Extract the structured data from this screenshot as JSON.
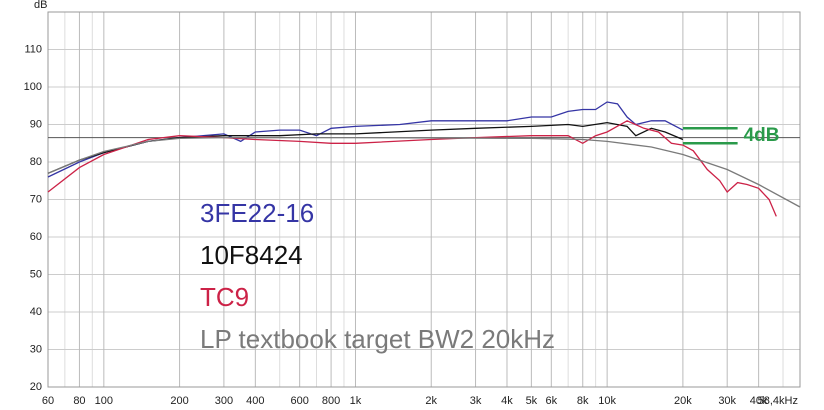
{
  "chart_data": {
    "type": "line",
    "y_axis_label": "dB",
    "xscale": "log",
    "xlim": [
      60,
      58400
    ],
    "ylim": [
      20,
      120
    ],
    "grid": true,
    "yticks": [
      20,
      30,
      40,
      50,
      60,
      70,
      80,
      90,
      100,
      110
    ],
    "xticks": [
      60,
      80,
      100,
      200,
      300,
      400,
      600,
      800,
      {
        "value": 1000,
        "label": "1k"
      },
      {
        "value": 2000,
        "label": "2k"
      },
      {
        "value": 3000,
        "label": "3k"
      },
      {
        "value": 4000,
        "label": "4k"
      },
      {
        "value": 5000,
        "label": "5k"
      },
      {
        "value": 6000,
        "label": "6k"
      },
      {
        "value": 8000,
        "label": "8k"
      },
      {
        "value": 10000,
        "label": "10k"
      },
      {
        "value": 20000,
        "label": "20k"
      },
      {
        "value": 30000,
        "label": "30k"
      },
      {
        "value": 40000,
        "label": "40k"
      },
      {
        "value": 58400,
        "label": "58,4kHz"
      }
    ],
    "xgrid_minor": [
      70,
      90,
      500,
      700,
      900,
      7000,
      9000,
      50000
    ],
    "reference_line": 86.5,
    "annotation": {
      "text": "4dB",
      "color": "#2a9a4a",
      "x": [
        20000,
        33000
      ],
      "y": [
        89,
        85
      ]
    },
    "series": [
      {
        "name": "3FE22-16",
        "color": "#3535a5",
        "x": [
          60,
          80,
          100,
          150,
          200,
          300,
          350,
          400,
          500,
          600,
          700,
          800,
          1000,
          1500,
          2000,
          3000,
          4000,
          5000,
          6000,
          7000,
          8000,
          9000,
          10000,
          11000,
          12000,
          13000,
          15000,
          17000,
          20000
        ],
        "values": [
          76,
          80,
          82.5,
          85.5,
          86.5,
          87.5,
          85.5,
          88,
          88.5,
          88.5,
          87,
          89,
          89.5,
          90,
          91,
          91,
          91,
          92,
          92,
          93.5,
          94,
          94,
          96,
          95.5,
          92,
          90,
          91,
          91,
          88.5
        ]
      },
      {
        "name": "10F8424",
        "color": "#111111",
        "x": [
          60,
          80,
          100,
          150,
          200,
          300,
          500,
          700,
          1000,
          2000,
          3000,
          5000,
          7000,
          8000,
          10000,
          12000,
          13000,
          15000,
          17000,
          20000
        ],
        "values": [
          77,
          80.5,
          82.5,
          85.5,
          86.5,
          87,
          87,
          87.5,
          87.5,
          88.5,
          89,
          89.5,
          90,
          89.5,
          90.5,
          89.5,
          87,
          89,
          88,
          86
        ]
      },
      {
        "name": "TC9",
        "color": "#cc2247",
        "x": [
          60,
          80,
          100,
          150,
          200,
          300,
          400,
          600,
          800,
          1000,
          2000,
          3000,
          5000,
          7000,
          8000,
          9000,
          10000,
          12000,
          14000,
          16000,
          18000,
          20000,
          22000,
          25000,
          28000,
          30000,
          33000,
          36000,
          40000,
          44000,
          47000
        ],
        "values": [
          72,
          78.5,
          82,
          86,
          87,
          86.5,
          86,
          85.5,
          85,
          85,
          86,
          86.5,
          87,
          87,
          85,
          87,
          88,
          91,
          89,
          88,
          85,
          84.5,
          83,
          78,
          75,
          72,
          74.5,
          74,
          73,
          70,
          65.5
        ]
      },
      {
        "name": "LP textbook target BW2 20kHz",
        "color": "#7a7a7a",
        "x": [
          60,
          80,
          100,
          150,
          200,
          300,
          1000,
          5000,
          8000,
          10000,
          15000,
          20000,
          30000,
          40000,
          58400
        ],
        "values": [
          77,
          80.5,
          82.8,
          85.5,
          86.3,
          86.5,
          86.5,
          86.3,
          86,
          85.5,
          84,
          82,
          78,
          74,
          68
        ]
      }
    ]
  }
}
